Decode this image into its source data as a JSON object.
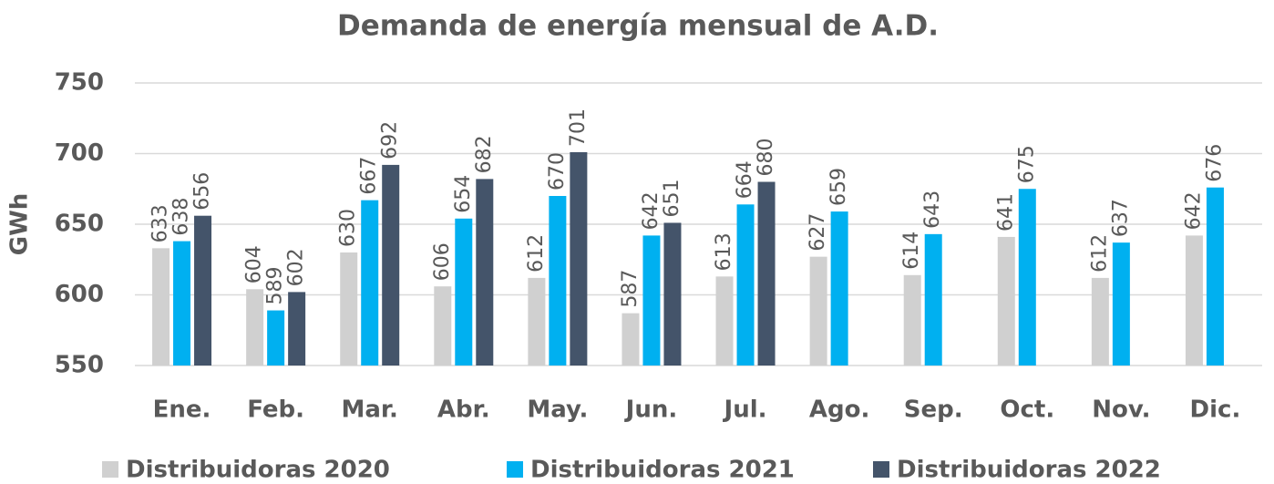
{
  "chart_data": {
    "type": "bar",
    "title": "Demanda de energía mensual de A.D.",
    "y_label": "GWh",
    "categories": [
      "Ene.",
      "Feb.",
      "Mar.",
      "Abr.",
      "May.",
      "Jun.",
      "Jul.",
      "Ago.",
      "Sep.",
      "Oct.",
      "Nov.",
      "Dic."
    ],
    "series": [
      {
        "name": "Distribuidoras 2020",
        "color": "#d0d0d0",
        "values": [
          633,
          604,
          630,
          606,
          612,
          587,
          613,
          627,
          614,
          641,
          612,
          642
        ]
      },
      {
        "name": "Distribuidoras 2021",
        "color": "#00b0f0",
        "values": [
          638,
          589,
          667,
          654,
          670,
          642,
          664,
          659,
          643,
          675,
          637,
          676
        ]
      },
      {
        "name": "Distribuidoras 2022",
        "color": "#44546a",
        "values": [
          656,
          602,
          692,
          682,
          701,
          651,
          680,
          null,
          null,
          null,
          null,
          null
        ]
      }
    ],
    "ylim": [
      550,
      750
    ],
    "yticks": [
      550,
      600,
      650,
      700,
      750
    ],
    "grid": true,
    "legend": "bottom"
  }
}
